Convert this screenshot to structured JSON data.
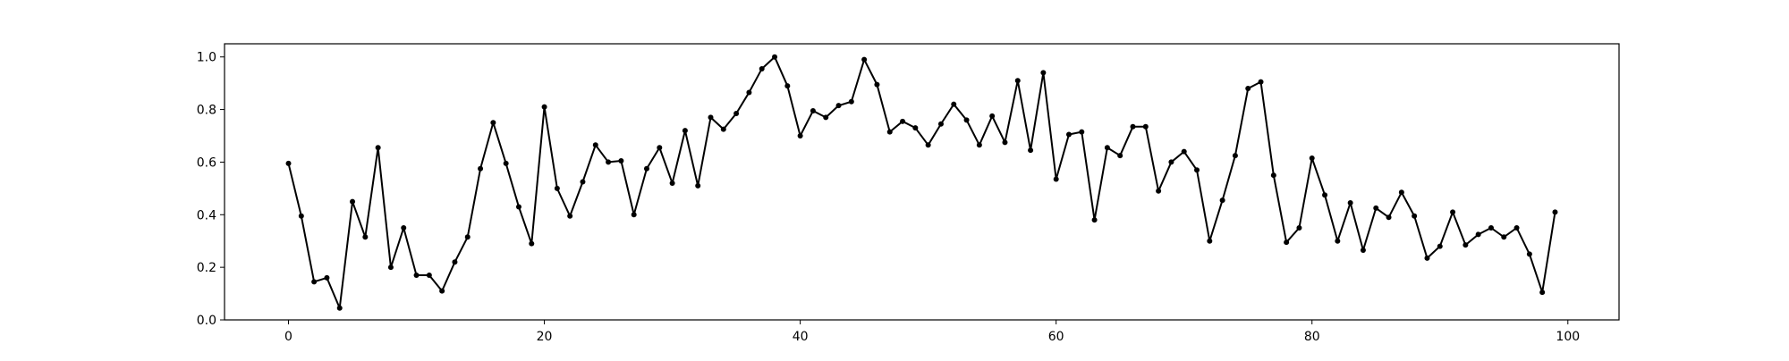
{
  "chart_data": {
    "type": "line",
    "title": "",
    "xlabel": "",
    "ylabel": "",
    "xlim": [
      -5,
      104
    ],
    "ylim": [
      0,
      1.05
    ],
    "xticks": [
      0,
      20,
      40,
      60,
      80,
      100
    ],
    "yticks": [
      0.0,
      0.2,
      0.4,
      0.6,
      0.8,
      1.0
    ],
    "xtick_labels": [
      "0",
      "20",
      "40",
      "60",
      "80",
      "100"
    ],
    "ytick_labels": [
      "0.0",
      "0.2",
      "0.4",
      "0.6",
      "0.8",
      "1.0"
    ],
    "grid": false,
    "legend": "none",
    "series": [
      {
        "color": "#000000",
        "marker": "dot",
        "x": [
          0,
          1,
          2,
          3,
          4,
          5,
          6,
          7,
          8,
          9,
          10,
          11,
          12,
          13,
          14,
          15,
          16,
          17,
          18,
          19,
          20,
          21,
          22,
          23,
          24,
          25,
          26,
          27,
          28,
          29,
          30,
          31,
          32,
          33,
          34,
          35,
          36,
          37,
          38,
          39,
          40,
          41,
          42,
          43,
          44,
          45,
          46,
          47,
          48,
          49,
          50,
          51,
          52,
          53,
          54,
          55,
          56,
          57,
          58,
          59,
          60,
          61,
          62,
          63,
          64,
          65,
          66,
          67,
          68,
          69,
          70,
          71,
          72,
          73,
          74,
          75,
          76,
          77,
          78,
          79,
          80,
          81,
          82,
          83,
          84,
          85,
          86,
          87,
          88,
          89,
          90,
          91,
          92,
          93,
          94,
          95,
          96,
          97,
          98,
          99
        ],
        "y": [
          0.595,
          0.395,
          0.145,
          0.16,
          0.045,
          0.45,
          0.315,
          0.655,
          0.2,
          0.35,
          0.17,
          0.17,
          0.11,
          0.22,
          0.315,
          0.575,
          0.75,
          0.595,
          0.43,
          0.29,
          0.81,
          0.5,
          0.395,
          0.525,
          0.665,
          0.6,
          0.605,
          0.4,
          0.575,
          0.655,
          0.52,
          0.72,
          0.51,
          0.77,
          0.725,
          0.785,
          0.865,
          0.955,
          1.0,
          0.89,
          0.7,
          0.795,
          0.77,
          0.815,
          0.83,
          0.99,
          0.895,
          0.715,
          0.755,
          0.73,
          0.665,
          0.745,
          0.82,
          0.76,
          0.665,
          0.775,
          0.675,
          0.91,
          0.645,
          0.94,
          0.535,
          0.705,
          0.715,
          0.38,
          0.655,
          0.625,
          0.735,
          0.735,
          0.49,
          0.6,
          0.64,
          0.57,
          0.3,
          0.455,
          0.625,
          0.88,
          0.905,
          0.55,
          0.295,
          0.35,
          0.615,
          0.475,
          0.3,
          0.445,
          0.265,
          0.425,
          0.39,
          0.485,
          0.395,
          0.235,
          0.28,
          0.41,
          0.285,
          0.325,
          0.35,
          0.315,
          0.35,
          0.25,
          0.105,
          0.41
        ]
      }
    ]
  }
}
